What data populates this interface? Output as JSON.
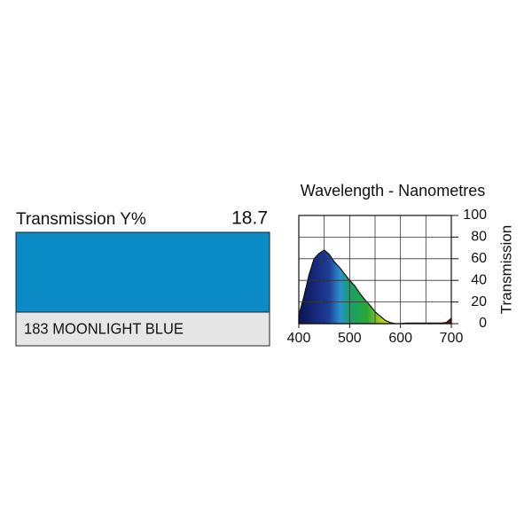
{
  "swatch": {
    "label": "Transmission Y%",
    "value": 18.7,
    "name": "183 MOONLIGHT BLUE",
    "color": "#0a8bc6"
  },
  "chart_data": {
    "type": "area",
    "title": "Wavelength - Nanometres",
    "y_label": "Transmission",
    "x": [
      400,
      410,
      420,
      430,
      440,
      450,
      460,
      470,
      480,
      490,
      500,
      510,
      520,
      530,
      540,
      550,
      560,
      570,
      580,
      590,
      600,
      610,
      620,
      630,
      640,
      650,
      660,
      670,
      680,
      690,
      700
    ],
    "values": [
      8,
      25,
      45,
      60,
      65,
      68,
      64,
      57,
      52,
      46,
      40,
      35,
      28,
      22,
      17,
      11,
      7,
      3,
      1,
      0,
      0,
      0.5,
      0.5,
      0.5,
      0.5,
      0.5,
      0.5,
      0.5,
      0.5,
      1,
      5
    ],
    "xlim": [
      400,
      700
    ],
    "xticks": [
      400,
      500,
      600,
      700
    ],
    "minor_xticks": [
      450,
      550,
      650
    ],
    "ylim": [
      0,
      100
    ],
    "yticks": [
      0,
      20,
      40,
      60,
      80,
      100
    ],
    "grid": true
  }
}
